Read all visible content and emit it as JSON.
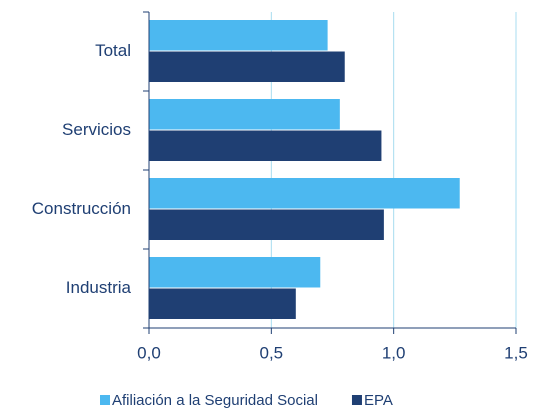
{
  "chart_data": {
    "type": "hbar",
    "categories": [
      "Total",
      "Servicios",
      "Construcción",
      "Industria"
    ],
    "series": [
      {
        "name": "Afiliación a la Seguridad Social",
        "color": "#4cb8f0",
        "values": [
          0.73,
          0.78,
          1.27,
          0.7
        ]
      },
      {
        "name": "EPA",
        "color": "#1f3f73",
        "values": [
          0.8,
          0.95,
          0.96,
          0.6
        ]
      }
    ],
    "xlim": [
      0,
      1.5
    ],
    "xticks": [
      {
        "value": 0,
        "label": "0,0"
      },
      {
        "value": 0.5,
        "label": "0,5"
      },
      {
        "value": 1,
        "label": "1,0"
      },
      {
        "value": 1.5,
        "label": "1,5"
      }
    ],
    "grid": true,
    "legend": "bottom"
  }
}
